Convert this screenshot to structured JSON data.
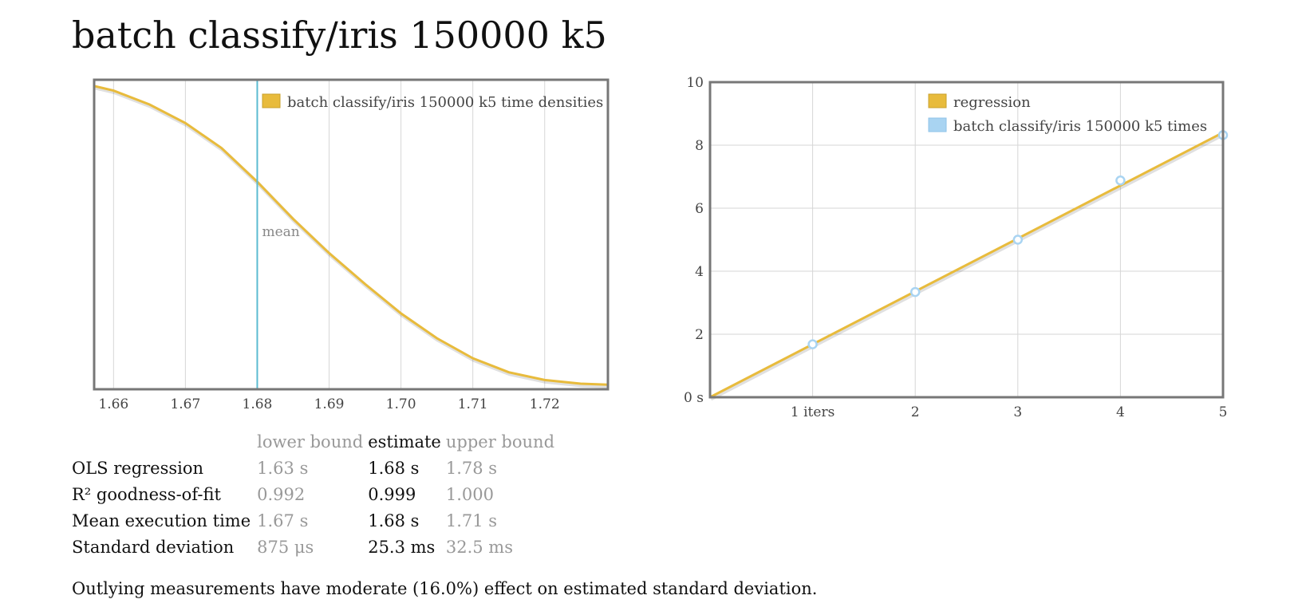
{
  "title": "batch classify/iris 150000 k5",
  "chart_data": [
    {
      "type": "line",
      "name": "density",
      "legend": [
        "batch classify/iris 150000 k5 time densities"
      ],
      "legend_position": "top-right",
      "x_ticks": [
        "1.66",
        "1.67",
        "1.68",
        "1.69",
        "1.70",
        "1.71",
        "1.72"
      ],
      "xlim": [
        1.6573,
        1.7288
      ],
      "ylim": [
        0,
        1
      ],
      "grid": "vertical",
      "curve": {
        "x": [
          1.6573,
          1.66,
          1.665,
          1.67,
          1.675,
          1.68,
          1.685,
          1.69,
          1.695,
          1.7,
          1.705,
          1.71,
          1.715,
          1.72,
          1.725,
          1.7288
        ],
        "y": [
          0.98,
          0.965,
          0.92,
          0.86,
          0.78,
          0.67,
          0.55,
          0.44,
          0.34,
          0.245,
          0.165,
          0.1,
          0.055,
          0.03,
          0.018,
          0.015
        ]
      },
      "mean": 1.68,
      "mean_label": "mean",
      "colors": {
        "density": "#e8bb3c",
        "mean_line": "#5bbbd1"
      }
    },
    {
      "type": "scatter",
      "name": "regression",
      "legend": [
        "regression",
        "batch classify/iris 150000 k5 times"
      ],
      "legend_position": "top-right",
      "x_ticks": [
        "1 iters",
        "2",
        "3",
        "4",
        "5"
      ],
      "y_ticks": [
        "0 s",
        "2",
        "4",
        "6",
        "8",
        "10"
      ],
      "xlim": [
        0,
        5
      ],
      "ylim": [
        0,
        10
      ],
      "grid": "both",
      "points": {
        "x": [
          1,
          2,
          3,
          4,
          5
        ],
        "y": [
          1.68,
          3.34,
          5.0,
          6.88,
          8.32
        ]
      },
      "regression_line": {
        "x": [
          0,
          5
        ],
        "y": [
          0,
          8.4
        ]
      },
      "colors": {
        "regression": "#e8bb3c",
        "points": "#a9d4f2"
      }
    }
  ],
  "stats": {
    "headers": [
      "lower bound",
      "estimate",
      "upper bound"
    ],
    "rows": [
      {
        "metric": "OLS regression",
        "lower": "1.63 s",
        "estimate": "1.68 s",
        "upper": "1.78 s"
      },
      {
        "metric": "R² goodness-of-fit",
        "lower": "0.992",
        "estimate": "0.999",
        "upper": "1.000"
      },
      {
        "metric": "Mean execution time",
        "lower": "1.67 s",
        "estimate": "1.68 s",
        "upper": "1.71 s"
      },
      {
        "metric": "Standard deviation",
        "lower": "875 μs",
        "estimate": "25.3 ms",
        "upper": "32.5 ms"
      }
    ]
  },
  "outlier_note": "Outlying measurements have moderate (16.0%) effect on estimated standard deviation."
}
